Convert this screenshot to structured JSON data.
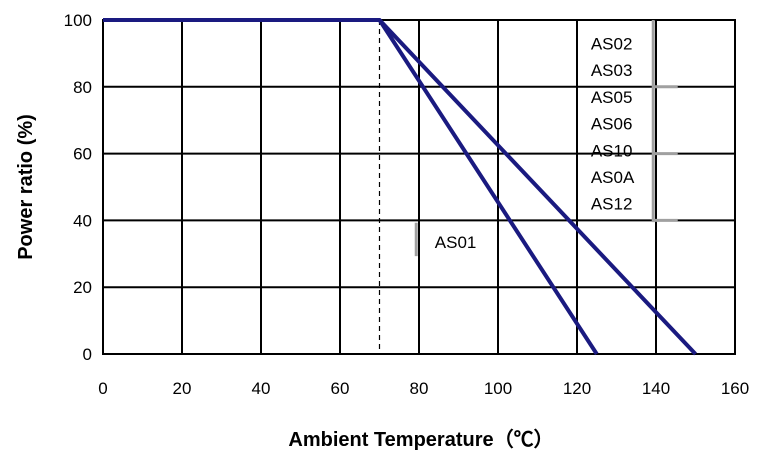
{
  "chart_data": {
    "type": "line",
    "xlabel": "Ambient Temperature（℃）",
    "ylabel": "Power ratio (%)",
    "xlim": [
      0,
      160
    ],
    "ylim": [
      0,
      100
    ],
    "x_ticks": [
      "0",
      "20",
      "40",
      "60",
      "80",
      "100",
      "120",
      "140",
      "160"
    ],
    "y_ticks": [
      "0",
      "20",
      "40",
      "60",
      "80",
      "100"
    ],
    "grid": true,
    "reference_line": {
      "x": 70,
      "style": "dashed"
    },
    "series": [
      {
        "points": [
          [
            0,
            100
          ],
          [
            70,
            100
          ],
          [
            125,
            0
          ]
        ]
      },
      {
        "points": [
          [
            0,
            100
          ],
          [
            70,
            100
          ],
          [
            150,
            0
          ]
        ]
      }
    ],
    "line_color": "#1a1a80",
    "annotations": [
      {
        "text": "AS01",
        "x": 84,
        "y": 33.5
      },
      {
        "text": "AS02",
        "x": 123.5,
        "y": 93
      },
      {
        "text": "AS03",
        "x": 123.5,
        "y": 85
      },
      {
        "text": "AS05",
        "x": 123.5,
        "y": 77
      },
      {
        "text": "AS06",
        "x": 123.5,
        "y": 69
      },
      {
        "text": "AS10",
        "x": 123.5,
        "y": 61
      },
      {
        "text": "AS0A",
        "x": 123.5,
        "y": 53
      },
      {
        "text": "AS12",
        "x": 123.5,
        "y": 45
      }
    ]
  }
}
